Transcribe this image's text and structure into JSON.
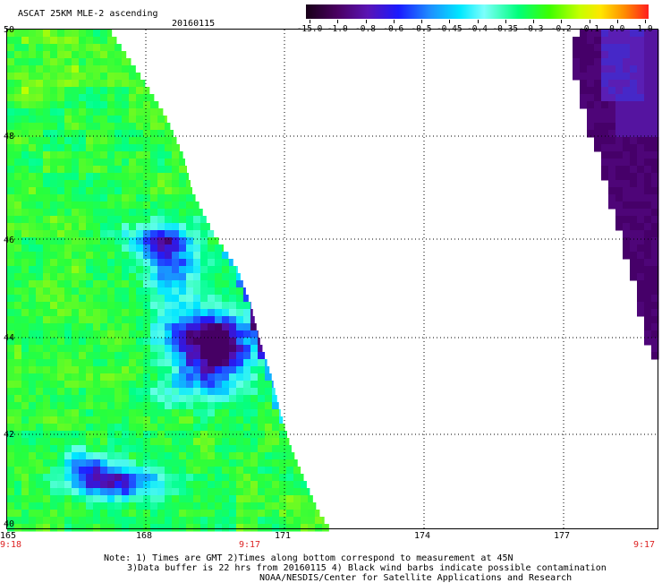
{
  "header": {
    "title": "ASCAT 25KM MLE-2 ascending",
    "date": "20160115"
  },
  "colorbar": {
    "labels": [
      "-15.0",
      "-1.0",
      "-0.8",
      "-0.6",
      "-0.5",
      "-0.45",
      "-0.4",
      "-0.35",
      "-0.3",
      "-0.2",
      "-0.1",
      "0.0",
      "1.0"
    ]
  },
  "axes": {
    "lat_labels": [
      "50",
      "48",
      "46",
      "44",
      "42",
      "40"
    ],
    "lon_labels": [
      "165",
      "168",
      "171",
      "174",
      "177"
    ],
    "time_labels": [
      "9:18",
      "9:17",
      "9:17"
    ]
  },
  "notes": {
    "line1": "Note: 1) Times are GMT 2)Times along bottom correspond to measurement at 45N",
    "line2": "3)Data buffer is 22 hrs from 20160115 4) Black wind barbs indicate possible contamination",
    "line3": "NOAA/NESDIS/Center for Satellite Applications and Research"
  },
  "colors": {
    "grid": "#000000",
    "time_label": "#d22222",
    "deep": "#46006a",
    "blue": "#1a1aff",
    "cyan": "#00ffff",
    "green": "#22ff44"
  }
}
